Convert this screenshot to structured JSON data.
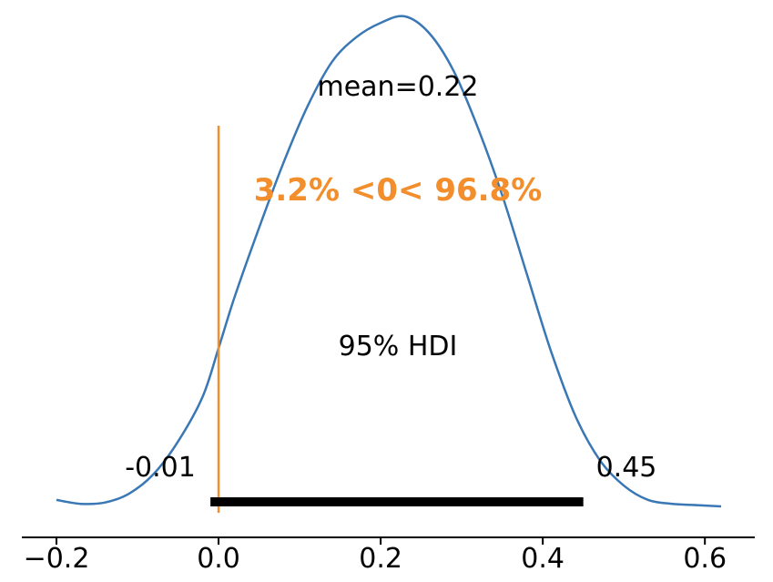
{
  "chart_data": {
    "type": "area",
    "title": "",
    "xlabel": "",
    "ylabel": "",
    "xlim": [
      -0.2,
      0.62
    ],
    "x_ticks": [
      -0.2,
      0.0,
      0.2,
      0.4,
      0.6
    ],
    "x_tick_labels": [
      "−0.2",
      "0.0",
      "0.2",
      "0.4",
      "0.6"
    ],
    "grid": false,
    "series": [
      {
        "x": [
          -0.2,
          -0.17,
          -0.14,
          -0.11,
          -0.08,
          -0.05,
          -0.02,
          0.0,
          0.02,
          0.05,
          0.08,
          0.11,
          0.14,
          0.17,
          0.2,
          0.23,
          0.26,
          0.29,
          0.32,
          0.35,
          0.38,
          0.41,
          0.44,
          0.47,
          0.5,
          0.53,
          0.56,
          0.59,
          0.62
        ],
        "y": [
          0.05,
          0.02,
          0.03,
          0.1,
          0.25,
          0.5,
          0.84,
          1.22,
          1.62,
          2.15,
          2.65,
          3.09,
          3.43,
          3.62,
          3.73,
          3.78,
          3.65,
          3.36,
          2.92,
          2.4,
          1.8,
          1.2,
          0.7,
          0.36,
          0.16,
          0.05,
          0.02,
          0.01,
          0.0
        ],
        "color": "#3a78b5"
      }
    ],
    "mean": {
      "value": 0.22,
      "label": "mean=0.22"
    },
    "hdi": {
      "low": -0.01,
      "high": 0.45,
      "label": "95% HDI",
      "low_label": "-0.01",
      "high_label": "0.45"
    },
    "ref_val": {
      "value": 0.0,
      "label": "3.2% <0< 96.8%",
      "color": "#f28e2b"
    }
  }
}
